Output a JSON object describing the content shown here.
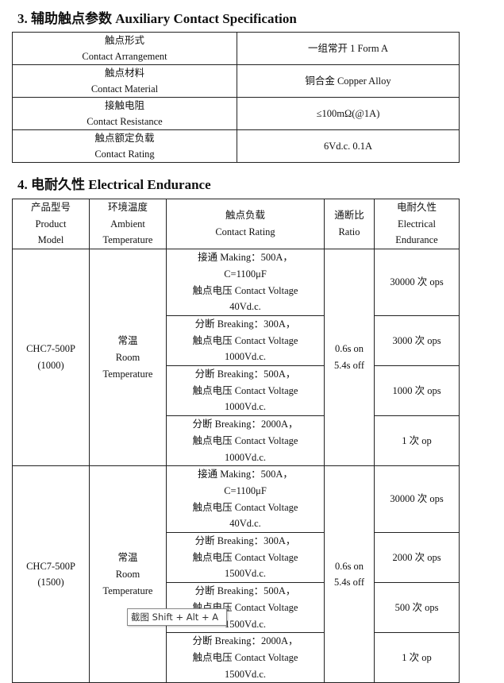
{
  "section3": {
    "title": "3.  辅助触点参数 Auxiliary Contact Specification",
    "rows": [
      {
        "label_cn": "触点形式",
        "label_en": "Contact Arrangement",
        "value": "一组常开  1 Form A"
      },
      {
        "label_cn": "触点材料",
        "label_en": "Contact Material",
        "value": "铜合金  Copper Alloy"
      },
      {
        "label_cn": "接触电阻",
        "label_en": "Contact Resistance",
        "value": "≤100mΩ(@1A)"
      },
      {
        "label_cn": "触点额定负载",
        "label_en": "Contact Rating",
        "value": "6Vd.c. 0.1A"
      }
    ]
  },
  "section4": {
    "title": "4.  电耐久性 Electrical Endurance",
    "headers": [
      [
        "产品型号",
        "Product",
        "Model"
      ],
      [
        "环境温度",
        "Ambient",
        "Temperature"
      ],
      [
        "触点负载",
        "Contact Rating"
      ],
      [
        "通断比",
        "Ratio"
      ],
      [
        "电耐久性",
        "Electrical",
        "Endurance"
      ]
    ],
    "groups": [
      {
        "model": [
          "CHC7-500P",
          "(1000)"
        ],
        "temperature": [
          "常温",
          "Room",
          "Temperature"
        ],
        "ratio": [
          "0.6s on",
          "5.4s off"
        ],
        "rows": [
          {
            "rating": [
              "接通  Making：500A，",
              "C=1100μF",
              "触点电压 Contact Voltage",
              "40Vd.c."
            ],
            "endurance": "30000 次  ops"
          },
          {
            "rating": [
              "分断  Breaking：300A，",
              "触点电压 Contact Voltage",
              "1000Vd.c."
            ],
            "endurance": "3000 次  ops"
          },
          {
            "rating": [
              "分断  Breaking：500A，",
              "触点电压 Contact Voltage",
              "1000Vd.c."
            ],
            "endurance": "1000 次  ops"
          },
          {
            "rating": [
              "分断  Breaking：2000A，",
              "触点电压 Contact Voltage",
              "1000Vd.c."
            ],
            "endurance": "1 次  op"
          }
        ]
      },
      {
        "model": [
          "CHC7-500P",
          "(1500)"
        ],
        "temperature": [
          "常温",
          "Room",
          "Temperature"
        ],
        "ratio": [
          "0.6s on",
          "5.4s off"
        ],
        "rows": [
          {
            "rating": [
              "接通  Making：500A，",
              "C=1100μF",
              "触点电压 Contact Voltage",
              "40Vd.c."
            ],
            "endurance": "30000 次  ops"
          },
          {
            "rating": [
              "分断  Breaking：300A，",
              "触点电压 Contact Voltage",
              "1500Vd.c."
            ],
            "endurance": "2000 次  ops"
          },
          {
            "rating": [
              "分断  Breaking：500A，",
              "触点电压 Contact Voltage",
              "1500Vd.c."
            ],
            "endurance": "500 次  ops"
          },
          {
            "rating": [
              "分断  Breaking：2000A，",
              "触点电压 Contact Voltage",
              "1500Vd.c."
            ],
            "endurance": "1 次  op"
          }
        ]
      }
    ]
  },
  "tooltip": {
    "text": "截图 Shift + Alt + A"
  }
}
